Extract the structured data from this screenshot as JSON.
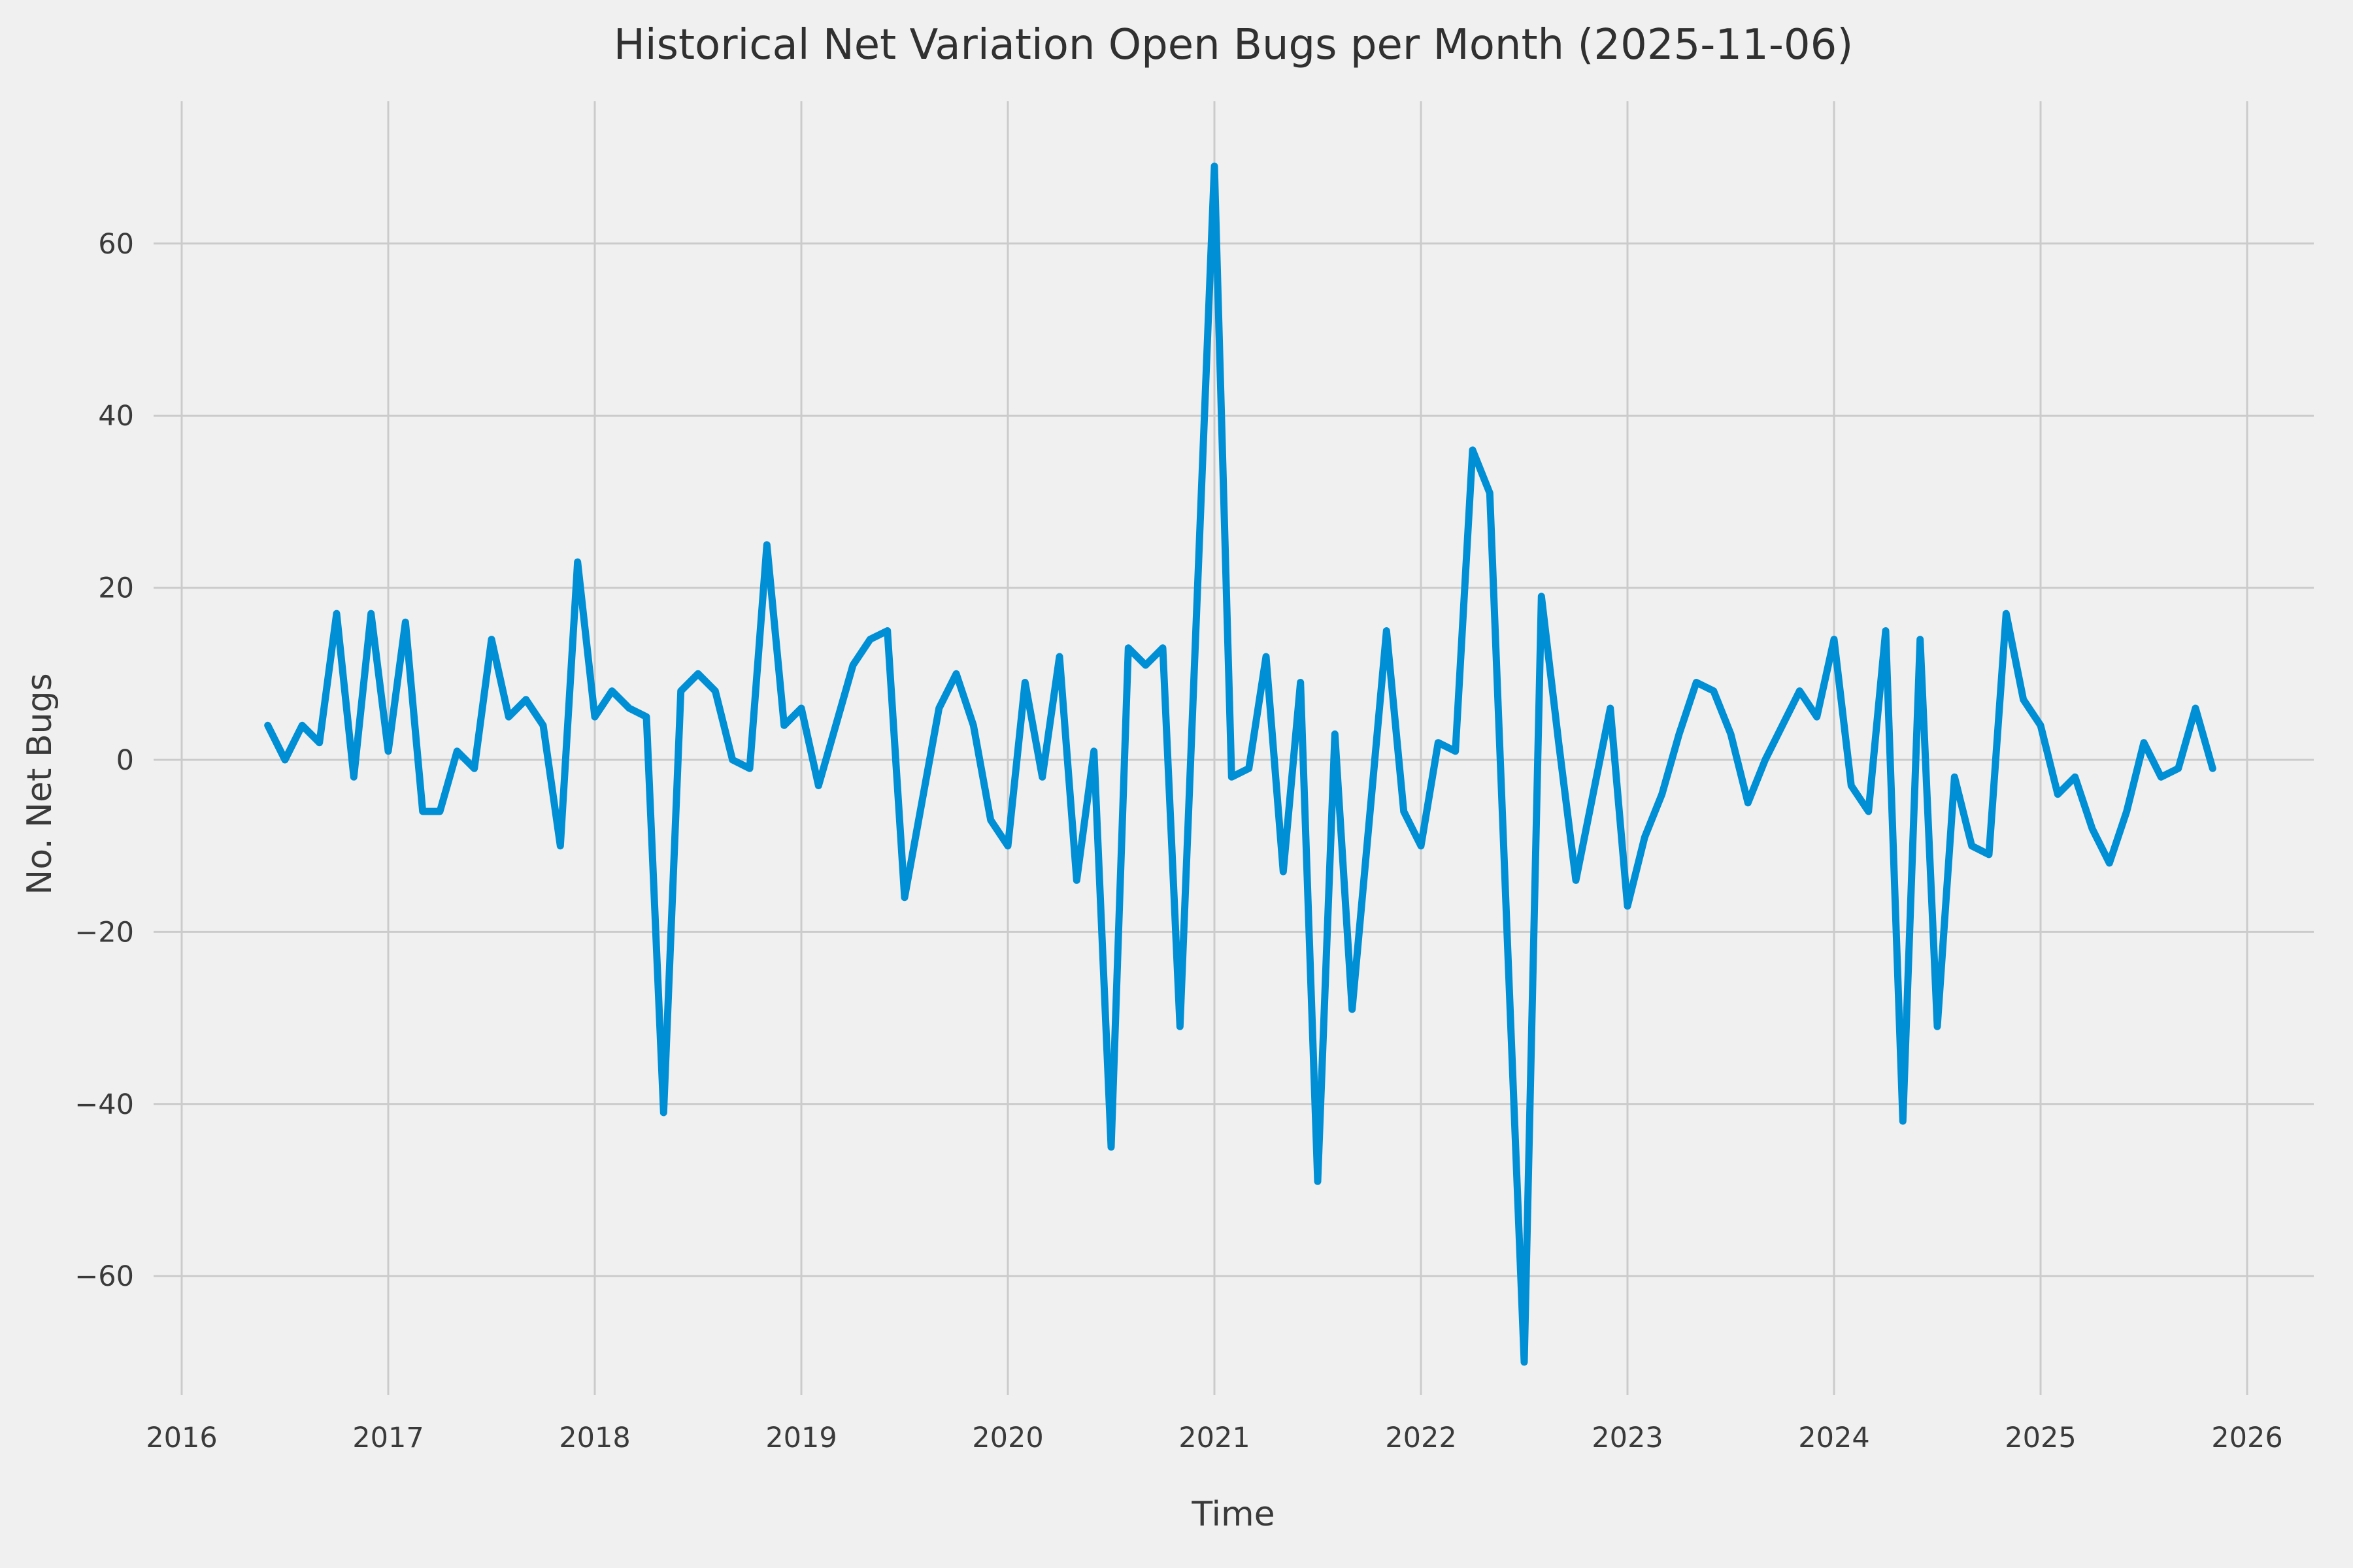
{
  "chart_data": {
    "type": "line",
    "title": "Historical Net Variation Open Bugs per Month (2025-11-06)",
    "xlabel": "Time",
    "ylabel": "No. Net Bugs",
    "legend": "none",
    "grid": "on",
    "background_color": "#f0f0f0",
    "grid_color": "#cbcbcb",
    "line_color": "#008fd5",
    "line_width": 11,
    "x_ticks": [
      2016,
      2017,
      2018,
      2019,
      2020,
      2021,
      2022,
      2023,
      2024,
      2025,
      2026
    ],
    "y_ticks": [
      -60,
      -40,
      -20,
      0,
      20,
      40,
      60
    ],
    "xlim": [
      2015.86,
      2026.32
    ],
    "ylim": [
      -74,
      76.5
    ],
    "series": [
      {
        "name": "net-open-bugs-per-month",
        "points": [
          [
            "2016-06",
            4
          ],
          [
            "2016-07",
            0
          ],
          [
            "2016-08",
            4
          ],
          [
            "2016-09",
            2
          ],
          [
            "2016-10",
            17
          ],
          [
            "2016-11",
            -2
          ],
          [
            "2016-12",
            17
          ],
          [
            "2017-01",
            1
          ],
          [
            "2017-02",
            16
          ],
          [
            "2017-03",
            -6
          ],
          [
            "2017-04",
            -6
          ],
          [
            "2017-05",
            1
          ],
          [
            "2017-06",
            -1
          ],
          [
            "2017-07",
            14
          ],
          [
            "2017-08",
            5
          ],
          [
            "2017-09",
            7
          ],
          [
            "2017-10",
            4
          ],
          [
            "2017-11",
            -10
          ],
          [
            "2017-12",
            23
          ],
          [
            "2018-01",
            5
          ],
          [
            "2018-02",
            8
          ],
          [
            "2018-03",
            6
          ],
          [
            "2018-04",
            5
          ],
          [
            "2018-05",
            -41
          ],
          [
            "2018-06",
            8
          ],
          [
            "2018-07",
            10
          ],
          [
            "2018-08",
            8
          ],
          [
            "2018-09",
            0
          ],
          [
            "2018-10",
            -1
          ],
          [
            "2018-11",
            25
          ],
          [
            "2018-12",
            4
          ],
          [
            "2019-01",
            6
          ],
          [
            "2019-02",
            -3
          ],
          [
            "2019-03",
            4
          ],
          [
            "2019-04",
            11
          ],
          [
            "2019-05",
            14
          ],
          [
            "2019-06",
            15
          ],
          [
            "2019-07",
            -16
          ],
          [
            "2019-08",
            -5
          ],
          [
            "2019-09",
            6
          ],
          [
            "2019-10",
            10
          ],
          [
            "2019-11",
            4
          ],
          [
            "2019-12",
            -7
          ],
          [
            "2020-01",
            -10
          ],
          [
            "2020-02",
            9
          ],
          [
            "2020-03",
            -2
          ],
          [
            "2020-04",
            12
          ],
          [
            "2020-05",
            -14
          ],
          [
            "2020-06",
            1
          ],
          [
            "2020-07",
            -45
          ],
          [
            "2020-08",
            13
          ],
          [
            "2020-09",
            11
          ],
          [
            "2020-10",
            13
          ],
          [
            "2020-11",
            -31
          ],
          [
            "2020-12",
            19
          ],
          [
            "2021-01",
            69
          ],
          [
            "2021-02",
            -2
          ],
          [
            "2021-03",
            -1
          ],
          [
            "2021-04",
            12
          ],
          [
            "2021-05",
            -13
          ],
          [
            "2021-06",
            9
          ],
          [
            "2021-07",
            -49
          ],
          [
            "2021-08",
            3
          ],
          [
            "2021-09",
            -29
          ],
          [
            "2021-10",
            -7
          ],
          [
            "2021-11",
            15
          ],
          [
            "2021-12",
            -6
          ],
          [
            "2022-01",
            -10
          ],
          [
            "2022-02",
            2
          ],
          [
            "2022-03",
            1
          ],
          [
            "2022-04",
            36
          ],
          [
            "2022-05",
            31
          ],
          [
            "2022-06",
            -20
          ],
          [
            "2022-07",
            -70
          ],
          [
            "2022-08",
            19
          ],
          [
            "2022-09",
            2
          ],
          [
            "2022-10",
            -14
          ],
          [
            "2022-11",
            -4
          ],
          [
            "2022-12",
            6
          ],
          [
            "2023-01",
            -17
          ],
          [
            "2023-02",
            -9
          ],
          [
            "2023-03",
            -4
          ],
          [
            "2023-04",
            3
          ],
          [
            "2023-05",
            9
          ],
          [
            "2023-06",
            8
          ],
          [
            "2023-07",
            3
          ],
          [
            "2023-08",
            -5
          ],
          [
            "2023-09",
            0
          ],
          [
            "2023-10",
            4
          ],
          [
            "2023-11",
            8
          ],
          [
            "2023-12",
            5
          ],
          [
            "2024-01",
            14
          ],
          [
            "2024-02",
            -3
          ],
          [
            "2024-03",
            -6
          ],
          [
            "2024-04",
            15
          ],
          [
            "2024-05",
            -42
          ],
          [
            "2024-06",
            14
          ],
          [
            "2024-07",
            -31
          ],
          [
            "2024-08",
            -2
          ],
          [
            "2024-09",
            -10
          ],
          [
            "2024-10",
            -11
          ],
          [
            "2024-11",
            17
          ],
          [
            "2024-12",
            7
          ],
          [
            "2025-01",
            4
          ],
          [
            "2025-02",
            -4
          ],
          [
            "2025-03",
            -2
          ],
          [
            "2025-04",
            -8
          ],
          [
            "2025-05",
            -12
          ],
          [
            "2025-06",
            -6
          ],
          [
            "2025-07",
            2
          ],
          [
            "2025-08",
            -2
          ],
          [
            "2025-09",
            -1
          ],
          [
            "2025-10",
            6
          ],
          [
            "2025-11",
            -1
          ]
        ]
      }
    ]
  }
}
